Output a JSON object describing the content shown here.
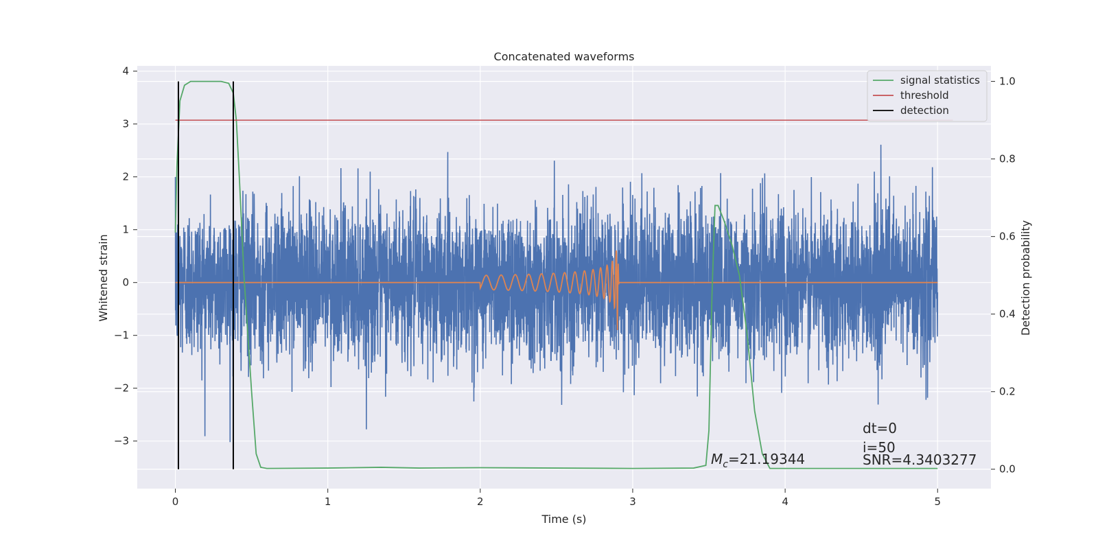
{
  "chart_data": {
    "type": "line",
    "title": "Concatenated waveforms",
    "xlabel": "Time (s)",
    "ylabel": "Whitened strain",
    "y2label": "Detection probability",
    "xlim": [
      -0.25,
      5.35
    ],
    "ylim": [
      -3.9,
      4.1
    ],
    "y2lim": [
      -0.05,
      1.04
    ],
    "xticks": [
      "0",
      "1",
      "2",
      "3",
      "4",
      "5"
    ],
    "xtick_values": [
      0,
      1,
      2,
      3,
      4,
      5
    ],
    "yticks": [
      "4",
      "3",
      "2",
      "1",
      "0",
      "−1",
      "−2",
      "−3"
    ],
    "ytick_values": [
      4,
      3,
      2,
      1,
      0,
      -1,
      -2,
      -3
    ],
    "y2ticks": [
      "1.0",
      "0.8",
      "0.6",
      "0.4",
      "0.2",
      "0.0"
    ],
    "y2tick_values": [
      1.0,
      0.8,
      0.6,
      0.4,
      0.2,
      0.0
    ],
    "grid": true,
    "legend_position": "top-right",
    "legend": [
      {
        "label": "signal statistics",
        "color": "#55a868"
      },
      {
        "label": "threshold",
        "color": "#c44e52"
      },
      {
        "label": "detection",
        "color": "#000000"
      }
    ],
    "noise": {
      "color": "#4c72b0",
      "x_range": [
        0,
        5
      ],
      "amplitude_typical": 1.0,
      "peak_max": 3.2,
      "peak_min": -3.55
    },
    "injected_signal": {
      "color": "#dd8452",
      "start": 2.0,
      "merger": 2.9,
      "peak_amplitude": 0.9
    },
    "signal_statistics": {
      "x": [
        0,
        0.01,
        0.03,
        0.06,
        0.1,
        0.2,
        0.3,
        0.35,
        0.38,
        0.4,
        0.42,
        0.45,
        0.5,
        0.53,
        0.56,
        0.6,
        1.0,
        1.35,
        1.6,
        2.0,
        2.5,
        3.0,
        3.4,
        3.48,
        3.5,
        3.52,
        3.54,
        3.56,
        3.6,
        3.65,
        3.7,
        3.75,
        3.8,
        3.85,
        3.9,
        4.5,
        5.0
      ],
      "y": [
        0.61,
        0.78,
        0.95,
        0.99,
        1.0,
        1.0,
        1.0,
        0.995,
        0.97,
        0.9,
        0.75,
        0.5,
        0.2,
        0.04,
        0.005,
        0.002,
        0.003,
        0.005,
        0.003,
        0.004,
        0.003,
        0.002,
        0.003,
        0.01,
        0.1,
        0.45,
        0.68,
        0.68,
        0.64,
        0.58,
        0.5,
        0.35,
        0.15,
        0.04,
        0.002,
        0.002,
        0.002
      ]
    },
    "threshold": {
      "value": 0.9,
      "x_range": [
        0,
        5.1
      ]
    },
    "detections": [
      0.02,
      0.38
    ],
    "annotations": {
      "dt": "dt=0",
      "i": "i=50",
      "snr": "SNR=4.3403277",
      "mc_symbol": "M",
      "mc_subscript": "c",
      "mc_value": "=21.19344"
    }
  }
}
